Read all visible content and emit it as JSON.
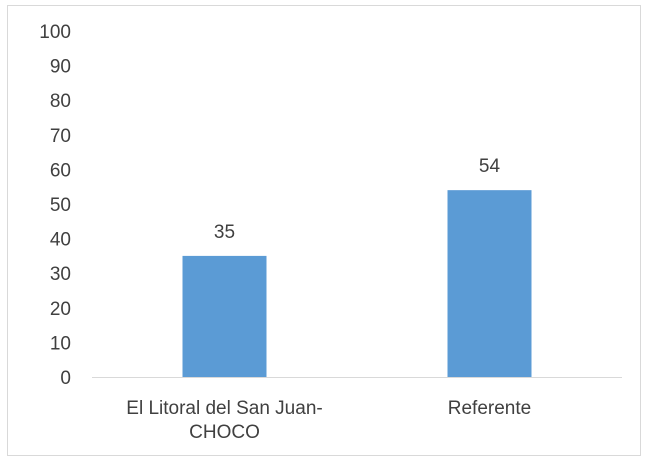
{
  "chart_data": {
    "type": "bar",
    "categories": [
      [
        "El Litoral del San Juan-",
        "CHOCO"
      ],
      [
        "Referente"
      ]
    ],
    "values": [
      35,
      54
    ],
    "data_labels": [
      "35",
      "54"
    ],
    "ylim": [
      0,
      100
    ],
    "yticks": [
      0,
      10,
      20,
      30,
      40,
      50,
      60,
      70,
      80,
      90,
      100
    ],
    "title": "",
    "xlabel": "",
    "ylabel": "",
    "grid": false,
    "legend": "none",
    "colors": {
      "bar": "#5b9bd5",
      "axis": "#d9d9d9",
      "text": "#404040"
    }
  }
}
